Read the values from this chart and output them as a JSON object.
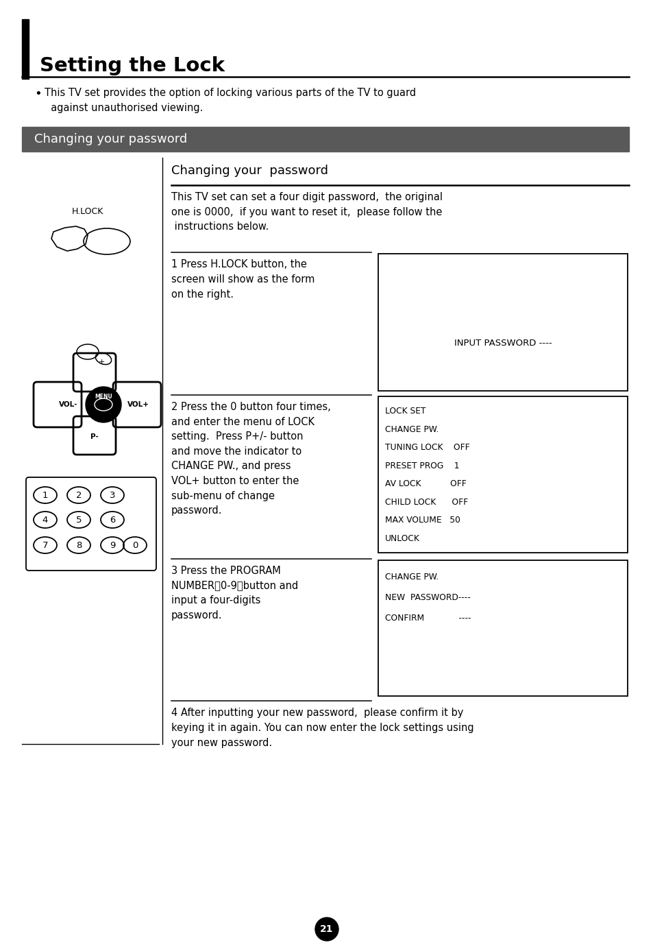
{
  "title": "Setting the Lock",
  "subtitle_bar": "Changing your password",
  "subtitle_bar_color": "#595959",
  "bg_color": "#ffffff",
  "text_color": "#000000",
  "section_title": "Changing your  password",
  "intro_text": "This TV set can set a four digit password,  the original\none is 0000,  if you want to reset it,  please follow the\n instructions below.",
  "bullet_text": "This TV set provides the option of locking various parts of the TV to guard\n  against unauthorised viewing.",
  "step1_text": "1 Press H.LOCK button, the\nscreen will show as the form\non the right.",
  "step2_text": "2 Press the 0 button four times,\nand enter the menu of LOCK\nsetting.  Press P+/- button\nand move the indicator to\nCHANGE PW., and press\nVOL+ button to enter the\nsub-menu of change\npassword.",
  "step3_text": "3 Press the PROGRAM\nNUMBER（0-9）button and\ninput a four-digits\npassword.",
  "step4_text": "4 After inputting your new password,  please confirm it by\nkeying it in again. You can now enter the lock settings using\nyour new password.",
  "box1_text": "INPUT PASSWORD ----",
  "box2_lines": [
    "LOCK SET",
    "CHANGE PW.",
    "TUNING LOCK    OFF",
    "PRESET PROG    1",
    "AV LOCK           OFF",
    "CHILD LOCK      OFF",
    "MAX VOLUME   50",
    "UNLOCK"
  ],
  "box3_lines": [
    "CHANGE PW.",
    "NEW  PASSWORD----",
    "CONFIRM             ----"
  ],
  "page_number": "21",
  "hlock_label": "H.LOCK"
}
